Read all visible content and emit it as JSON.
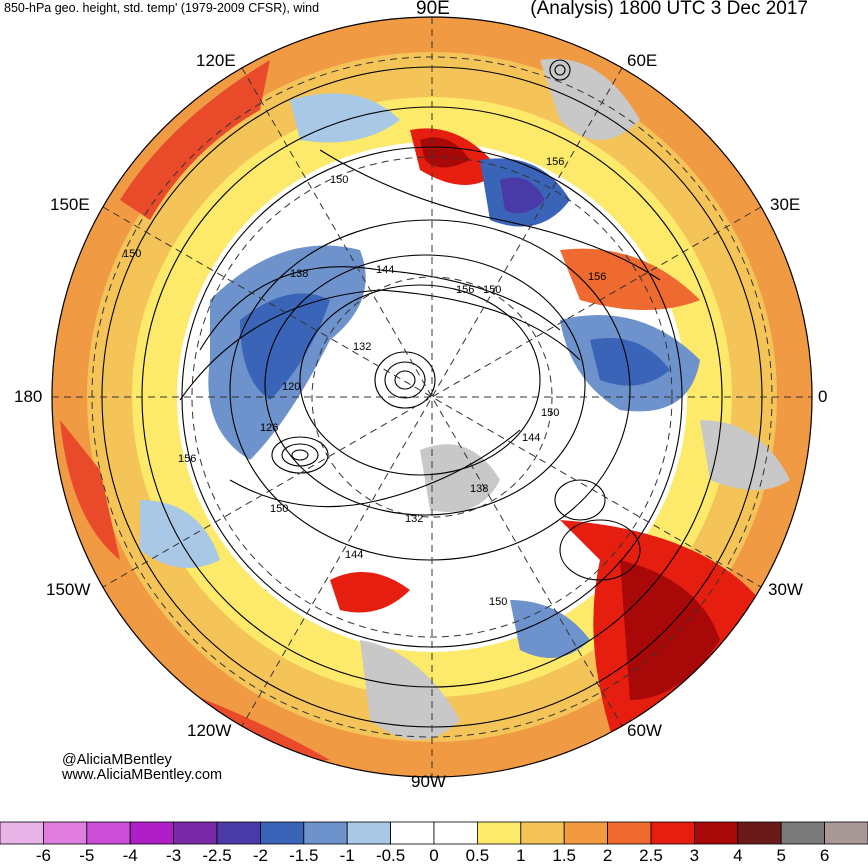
{
  "header": {
    "left_title": "850-hPa geo. height, std. temp' (1979-2009 CFSR), wind",
    "right_title": "(Analysis) 1800 UTC 3 Dec 2017"
  },
  "longitude_labels": {
    "top": "90E",
    "upper_left": "120E",
    "upper_right": "60E",
    "left_upper": "150E",
    "right_upper": "30E",
    "left": "180",
    "right": "0",
    "left_lower": "150W",
    "right_lower": "30W",
    "lower_left": "120W",
    "lower_right": "60W",
    "bottom": "90W"
  },
  "contour_labels": [
    "156",
    "150",
    "138",
    "144",
    "132",
    "120",
    "126",
    "150",
    "156",
    "150",
    "144",
    "150",
    "156",
    "132",
    "138",
    "144",
    "150",
    "156",
    "150"
  ],
  "credits": {
    "twitter": "@AliciaMBentley",
    "website": "www.AliciaMBentley.com"
  },
  "colorbar": {
    "labels": [
      "-6",
      "-5",
      "-4",
      "-3",
      "-2.5",
      "-2",
      "-1.5",
      "-1",
      "-0.5",
      "0",
      "0.5",
      "1",
      "1.5",
      "2",
      "2.5",
      "3",
      "4",
      "5",
      "6"
    ],
    "colors": [
      "#e8b4e8",
      "#e07ee0",
      "#cc4dd6",
      "#b01ec8",
      "#7a2aa8",
      "#4a3aa8",
      "#3a64b8",
      "#6e92cc",
      "#a8c8e6",
      "#ffffff",
      "#ffffff",
      "#fde96a",
      "#f5c458",
      "#f29a40",
      "#ef6a30",
      "#e51e10",
      "#a80808",
      "#6b1a1a",
      "#7a7a7a",
      "#a89898"
    ]
  }
}
